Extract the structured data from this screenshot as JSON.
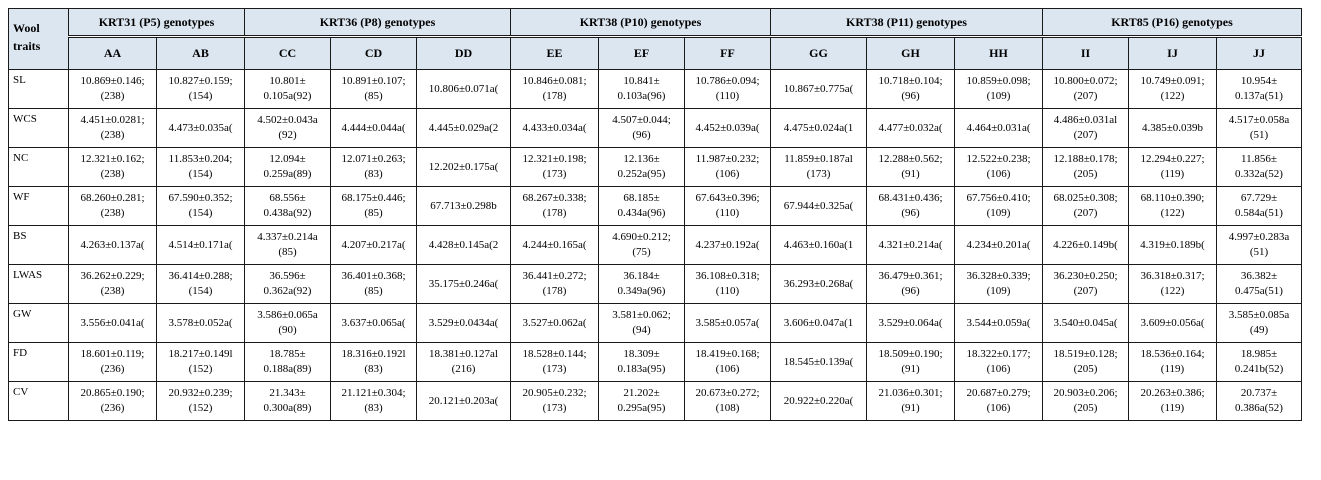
{
  "corner_label": "Wool\ntraits",
  "gene_groups": [
    {
      "label": "KRT31 (P5) genotypes",
      "span": 2
    },
    {
      "label": "KRT36 (P8) genotypes",
      "span": 3
    },
    {
      "label": "KRT38 (P10) genotypes",
      "span": 3
    },
    {
      "label": "KRT38 (P11) genotypes",
      "span": 3
    },
    {
      "label": "KRT85 (P16) genotypes",
      "span": 3
    }
  ],
  "genotypes": [
    "AA",
    "AB",
    "CC",
    "CD",
    "DD",
    "EE",
    "EF",
    "FF",
    "GG",
    "GH",
    "HH",
    "II",
    "IJ",
    "JJ"
  ],
  "rows": [
    {
      "trait": "SL",
      "cells": [
        [
          "10.869±0.146;",
          "(238)"
        ],
        [
          "10.827±0.159;",
          "(154)"
        ],
        [
          "10.801±",
          "0.105a(92)"
        ],
        [
          "10.891±0.107;",
          "(85)"
        ],
        [
          "10.806±0.071a(",
          ""
        ],
        [
          "10.846±0.081;",
          "(178)"
        ],
        [
          "10.841±",
          "0.103a(96)"
        ],
        [
          "10.786±0.094;",
          "(110)"
        ],
        [
          "10.867±0.775a(",
          ""
        ],
        [
          "10.718±0.104;",
          "(96)"
        ],
        [
          "10.859±0.098;",
          "(109)"
        ],
        [
          "10.800±0.072;",
          "(207)"
        ],
        [
          "10.749±0.091;",
          "(122)"
        ],
        [
          "10.954±",
          "0.137a(51)"
        ]
      ]
    },
    {
      "trait": "WCS",
      "cells": [
        [
          "4.451±0.0281;",
          "(238)"
        ],
        [
          "4.473±0.035a(",
          ""
        ],
        [
          "4.502±0.043a",
          "(92)"
        ],
        [
          "4.444±0.044a(",
          ""
        ],
        [
          "4.445±0.029a(2",
          ""
        ],
        [
          "4.433±0.034a(",
          ""
        ],
        [
          "4.507±0.044;",
          "(96)"
        ],
        [
          "4.452±0.039a(",
          ""
        ],
        [
          "4.475±0.024a(1",
          ""
        ],
        [
          "4.477±0.032a(",
          ""
        ],
        [
          "4.464±0.031a(",
          ""
        ],
        [
          "4.486±0.031al",
          "(207)"
        ],
        [
          "4.385±0.039b",
          ""
        ],
        [
          "4.517±0.058a",
          "(51)"
        ]
      ]
    },
    {
      "trait": "NC",
      "cells": [
        [
          "12.321±0.162;",
          "(238)"
        ],
        [
          "11.853±0.204;",
          "(154)"
        ],
        [
          "12.094±",
          "0.259a(89)"
        ],
        [
          "12.071±0.263;",
          "(83)"
        ],
        [
          "12.202±0.175a(",
          ""
        ],
        [
          "12.321±0.198;",
          "(173)"
        ],
        [
          "12.136±",
          "0.252a(95)"
        ],
        [
          "11.987±0.232;",
          "(106)"
        ],
        [
          "11.859±0.187al",
          "(173)"
        ],
        [
          "12.288±0.562;",
          "(91)"
        ],
        [
          "12.522±0.238;",
          "(106)"
        ],
        [
          "12.188±0.178;",
          "(205)"
        ],
        [
          "12.294±0.227;",
          "(119)"
        ],
        [
          "11.856±",
          "0.332a(52)"
        ]
      ]
    },
    {
      "trait": "WF",
      "cells": [
        [
          "68.260±0.281;",
          "(238)"
        ],
        [
          "67.590±0.352;",
          "(154)"
        ],
        [
          "68.556±",
          "0.438a(92)"
        ],
        [
          "68.175±0.446;",
          "(85)"
        ],
        [
          "67.713±0.298b",
          ""
        ],
        [
          "68.267±0.338;",
          "(178)"
        ],
        [
          "68.185±",
          "0.434a(96)"
        ],
        [
          "67.643±0.396;",
          "(110)"
        ],
        [
          "67.944±0.325a(",
          ""
        ],
        [
          "68.431±0.436;",
          "(96)"
        ],
        [
          "67.756±0.410;",
          "(109)"
        ],
        [
          "68.025±0.308;",
          "(207)"
        ],
        [
          "68.110±0.390;",
          "(122)"
        ],
        [
          "67.729±",
          "0.584a(51)"
        ]
      ]
    },
    {
      "trait": "BS",
      "cells": [
        [
          "4.263±0.137a(",
          ""
        ],
        [
          "4.514±0.171a(",
          ""
        ],
        [
          "4.337±0.214a",
          "(85)"
        ],
        [
          "4.207±0.217a(",
          ""
        ],
        [
          "4.428±0.145a(2",
          ""
        ],
        [
          "4.244±0.165a(",
          ""
        ],
        [
          "4.690±0.212;",
          "(75)"
        ],
        [
          "4.237±0.192a(",
          ""
        ],
        [
          "4.463±0.160a(1",
          ""
        ],
        [
          "4.321±0.214a(",
          ""
        ],
        [
          "4.234±0.201a(",
          ""
        ],
        [
          "4.226±0.149b(",
          ""
        ],
        [
          "4.319±0.189b(",
          ""
        ],
        [
          "4.997±0.283a",
          "(51)"
        ]
      ]
    },
    {
      "trait": "LWAS",
      "cells": [
        [
          "36.262±0.229;",
          "(238)"
        ],
        [
          "36.414±0.288;",
          "(154)"
        ],
        [
          "36.596±",
          "0.362a(92)"
        ],
        [
          "36.401±0.368;",
          "(85)"
        ],
        [
          "35.175±0.246a(",
          ""
        ],
        [
          "36.441±0.272;",
          "(178)"
        ],
        [
          "36.184±",
          "0.349a(96)"
        ],
        [
          "36.108±0.318;",
          "(110)"
        ],
        [
          "36.293±0.268a(",
          ""
        ],
        [
          "36.479±0.361;",
          "(96)"
        ],
        [
          "36.328±0.339;",
          "(109)"
        ],
        [
          "36.230±0.250;",
          "(207)"
        ],
        [
          "36.318±0.317;",
          "(122)"
        ],
        [
          "36.382±",
          "0.475a(51)"
        ]
      ]
    },
    {
      "trait": "GW",
      "cells": [
        [
          "3.556±0.041a(",
          ""
        ],
        [
          "3.578±0.052a(",
          ""
        ],
        [
          "3.586±0.065a",
          "(90)"
        ],
        [
          "3.637±0.065a(",
          ""
        ],
        [
          "3.529±0.0434a(",
          ""
        ],
        [
          "3.527±0.062a(",
          ""
        ],
        [
          "3.581±0.062;",
          "(94)"
        ],
        [
          "3.585±0.057a(",
          ""
        ],
        [
          "3.606±0.047a(1",
          ""
        ],
        [
          "3.529±0.064a(",
          ""
        ],
        [
          "3.544±0.059a(",
          ""
        ],
        [
          "3.540±0.045a(",
          ""
        ],
        [
          "3.609±0.056a(",
          ""
        ],
        [
          "3.585±0.085a",
          "(49)"
        ]
      ]
    },
    {
      "trait": "FD",
      "cells": [
        [
          "18.601±0.119;",
          "(236)"
        ],
        [
          "18.217±0.149l",
          "(152)"
        ],
        [
          "18.785±",
          "0.188a(89)"
        ],
        [
          "18.316±0.192l",
          "(83)"
        ],
        [
          "18.381±0.127al",
          "(216)"
        ],
        [
          "18.528±0.144;",
          "(173)"
        ],
        [
          "18.309±",
          "0.183a(95)"
        ],
        [
          "18.419±0.168;",
          "(106)"
        ],
        [
          "18.545±0.139a(",
          ""
        ],
        [
          "18.509±0.190;",
          "(91)"
        ],
        [
          "18.322±0.177;",
          "(106)"
        ],
        [
          "18.519±0.128;",
          "(205)"
        ],
        [
          "18.536±0.164;",
          "(119)"
        ],
        [
          "18.985±",
          "0.241b(52)"
        ]
      ]
    },
    {
      "trait": "CV",
      "cells": [
        [
          "20.865±0.190;",
          "(236)"
        ],
        [
          "20.932±0.239;",
          "(152)"
        ],
        [
          "21.343±",
          "0.300a(89)"
        ],
        [
          "21.121±0.304;",
          "(83)"
        ],
        [
          "20.121±0.203a(",
          ""
        ],
        [
          "20.905±0.232;",
          "(173)"
        ],
        [
          "21.202±",
          "0.295a(95)"
        ],
        [
          "20.673±0.272;",
          "(108)"
        ],
        [
          "20.922±0.220a(",
          ""
        ],
        [
          "21.036±0.301;",
          "(91)"
        ],
        [
          "20.687±0.279;",
          "(106)"
        ],
        [
          "20.903±0.206;",
          "(205)"
        ],
        [
          "20.263±0.386;",
          "(119)"
        ],
        [
          "20.737±",
          "0.386a(52)"
        ]
      ]
    }
  ]
}
